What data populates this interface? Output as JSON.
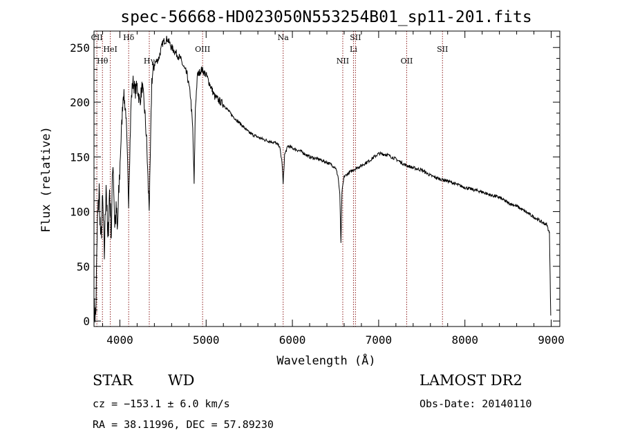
{
  "chart_data": {
    "type": "line",
    "title": "spec-56668-HD023050N553254B01_sp11-201.fits",
    "xlabel": "Wavelength (Å)",
    "ylabel": "Flux (relative)",
    "xlim": [
      3700,
      9100
    ],
    "ylim": [
      -5,
      265
    ],
    "xticks": [
      4000,
      5000,
      6000,
      7000,
      8000,
      9000
    ],
    "yticks": [
      0,
      50,
      100,
      150,
      200,
      250
    ],
    "grid": false,
    "series": [
      {
        "x": [
          3700,
          3720,
          3740,
          3760,
          3780,
          3800,
          3820,
          3840,
          3860,
          3880,
          3900,
          3920,
          3940,
          3960,
          3970,
          3990,
          4010,
          4040,
          4070,
          4090,
          4101,
          4110,
          4130,
          4150,
          4180,
          4200,
          4230,
          4260,
          4290,
          4310,
          4330,
          4340,
          4350,
          4370,
          4400,
          4450,
          4500,
          4550,
          4600,
          4650,
          4700,
          4750,
          4780,
          4820,
          4845,
          4861,
          4875,
          4900,
          4950,
          5000,
          5050,
          5100,
          5200,
          5300,
          5400,
          5500,
          5600,
          5700,
          5800,
          5850,
          5880,
          5893,
          5910,
          5950,
          6000,
          6100,
          6200,
          6300,
          6400,
          6450,
          6500,
          6530,
          6550,
          6563,
          6575,
          6600,
          6650,
          6700,
          6800,
          6900,
          7000,
          7100,
          7200,
          7300,
          7400,
          7500,
          7600,
          7700,
          7800,
          7900,
          8000,
          8100,
          8200,
          8300,
          8400,
          8500,
          8600,
          8700,
          8800,
          8900,
          8950,
          8980,
          8995
        ],
        "y": [
          10,
          5,
          90,
          120,
          70,
          110,
          60,
          130,
          70,
          120,
          80,
          150,
          90,
          100,
          80,
          120,
          160,
          210,
          190,
          140,
          110,
          140,
          200,
          220,
          210,
          215,
          200,
          215,
          190,
          165,
          120,
          105,
          135,
          220,
          235,
          240,
          255,
          258,
          250,
          245,
          240,
          230,
          225,
          205,
          175,
          125,
          195,
          225,
          230,
          225,
          215,
          205,
          198,
          188,
          180,
          172,
          168,
          165,
          163,
          160,
          145,
          125,
          152,
          160,
          158,
          155,
          150,
          148,
          145,
          143,
          140,
          132,
          115,
          70,
          118,
          132,
          135,
          138,
          142,
          147,
          153,
          152,
          148,
          143,
          140,
          138,
          133,
          130,
          128,
          125,
          122,
          120,
          118,
          115,
          113,
          108,
          105,
          100,
          95,
          90,
          88,
          80,
          5
        ]
      }
    ],
    "reference_lines": [
      {
        "label": "CII",
        "x": 3733
      },
      {
        "label": "Hθ",
        "x": 3798
      },
      {
        "label": "HeI",
        "x": 3889
      },
      {
        "label": "Hδ",
        "x": 4102
      },
      {
        "label": "Hγ",
        "x": 4341
      },
      {
        "label": "OIII",
        "x": 4959
      },
      {
        "label": "Na",
        "x": 5893
      },
      {
        "label": "NII",
        "x": 6584
      },
      {
        "label": "Li",
        "x": 6708
      },
      {
        "label": "SII",
        "x": 6731
      },
      {
        "label": "OII",
        "x": 7325
      },
      {
        "label": "SII",
        "x": 7740
      }
    ]
  },
  "info": {
    "object_class": "STAR",
    "subclass": "WD",
    "survey": "LAMOST DR2",
    "redshift_line": "cz = −153.1 ± 6.0 km/s",
    "obs_date": "Obs-Date: 20140110",
    "coords": "RA =  38.11996, DEC =  57.89230"
  },
  "colors": {
    "reference_line": "#8b1a1a",
    "spectrum": "#000000"
  }
}
